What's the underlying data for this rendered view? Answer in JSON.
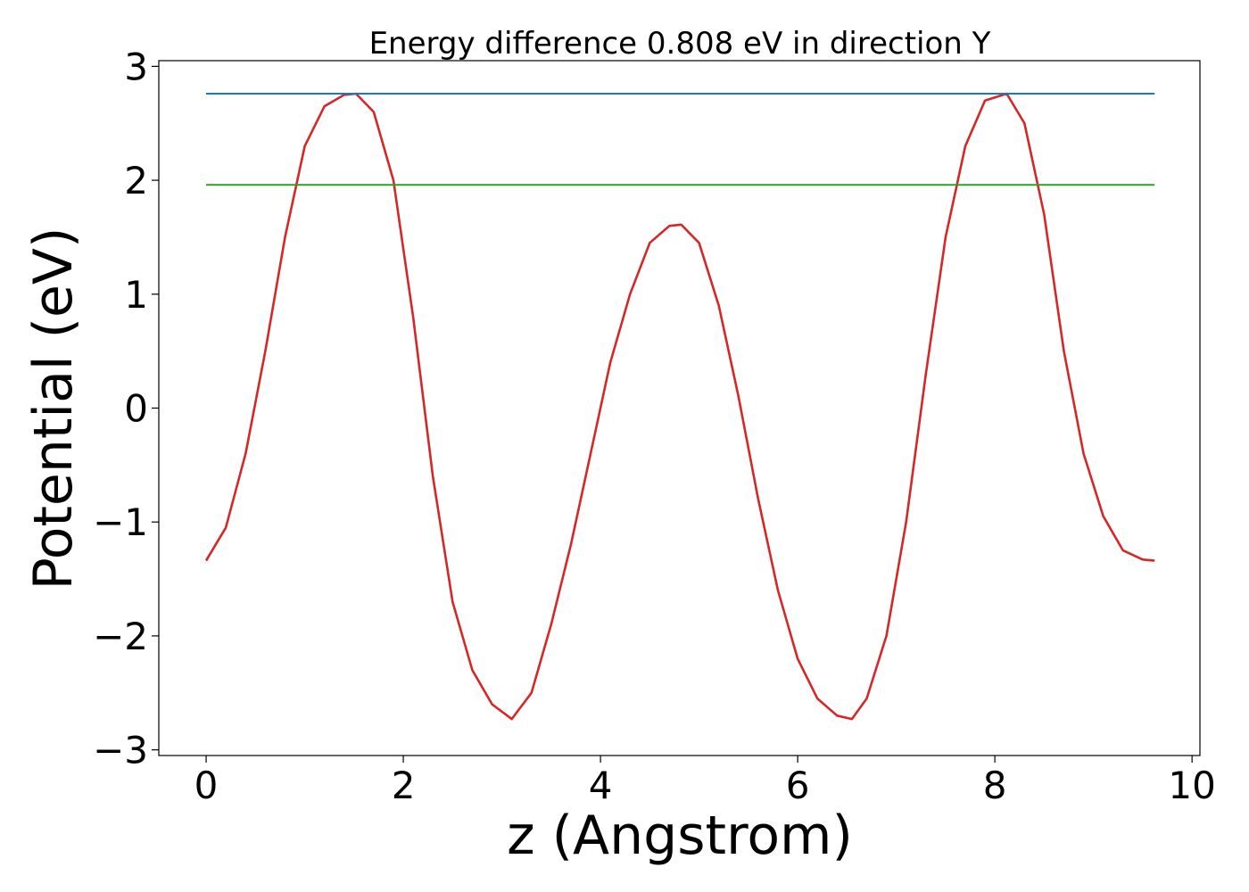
{
  "chart_data": {
    "type": "line",
    "title": "Energy difference 0.808 eV in direction Y",
    "xlabel": "z (Angstrom)",
    "ylabel": "Potential (eV)",
    "xlim": [
      -0.48,
      10.08
    ],
    "ylim": [
      -3.05,
      3.05
    ],
    "xticks": [
      0,
      2,
      4,
      6,
      8,
      10
    ],
    "yticks": [
      -3,
      -2,
      -1,
      0,
      1,
      2,
      3
    ],
    "grid": false,
    "legend": "none",
    "series": [
      {
        "color": "#d62728",
        "x": [
          0.0,
          0.2,
          0.4,
          0.6,
          0.8,
          1.0,
          1.2,
          1.4,
          1.52,
          1.7,
          1.9,
          2.1,
          2.3,
          2.5,
          2.7,
          2.9,
          3.1,
          3.3,
          3.5,
          3.7,
          3.9,
          4.1,
          4.3,
          4.5,
          4.7,
          4.82,
          5.0,
          5.2,
          5.4,
          5.6,
          5.8,
          6.0,
          6.2,
          6.4,
          6.55,
          6.7,
          6.9,
          7.1,
          7.3,
          7.5,
          7.7,
          7.9,
          8.12,
          8.3,
          8.5,
          8.7,
          8.9,
          9.1,
          9.3,
          9.5,
          9.62
        ],
        "y": [
          -1.34,
          -1.05,
          -0.4,
          0.5,
          1.5,
          2.3,
          2.65,
          2.75,
          2.76,
          2.6,
          2.0,
          0.8,
          -0.6,
          -1.7,
          -2.3,
          -2.6,
          -2.73,
          -2.5,
          -1.9,
          -1.2,
          -0.4,
          0.4,
          1.0,
          1.45,
          1.6,
          1.61,
          1.45,
          0.9,
          0.1,
          -0.8,
          -1.6,
          -2.2,
          -2.55,
          -2.7,
          -2.73,
          -2.55,
          -2.0,
          -1.0,
          0.3,
          1.5,
          2.3,
          2.7,
          2.76,
          2.5,
          1.7,
          0.5,
          -0.4,
          -0.95,
          -1.25,
          -1.33,
          -1.34
        ]
      },
      {
        "color": "#1f77b4",
        "x": [
          0.0,
          9.62
        ],
        "y": [
          2.76,
          2.76
        ]
      },
      {
        "color": "#2ca02c",
        "x": [
          0.0,
          9.62
        ],
        "y": [
          1.96,
          1.96
        ]
      }
    ]
  }
}
